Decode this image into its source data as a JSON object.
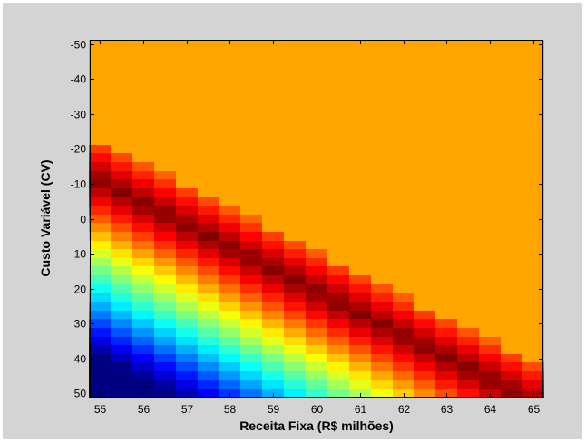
{
  "chart_data": {
    "type": "heatmap",
    "title": "",
    "xlabel": "Receita Fixa (R$ milhões)",
    "ylabel": "Custo Variável (CV)",
    "x": {
      "min": 54.77,
      "max": 65.23,
      "step": 0.5,
      "start": 55,
      "end": 65,
      "ticks": [
        55,
        56,
        57,
        58,
        59,
        60,
        61,
        62,
        63,
        64,
        65
      ]
    },
    "y": {
      "min": -51.25,
      "max": 51.25,
      "step": 2.5,
      "start": -50,
      "end": 50,
      "reversed": true,
      "ticks": [
        -50,
        -40,
        -30,
        -20,
        -10,
        0,
        10,
        20,
        30,
        40,
        50
      ]
    },
    "colormap": "jet",
    "saturation_color": "#ffa500",
    "grid": false,
    "legend": "none"
  }
}
